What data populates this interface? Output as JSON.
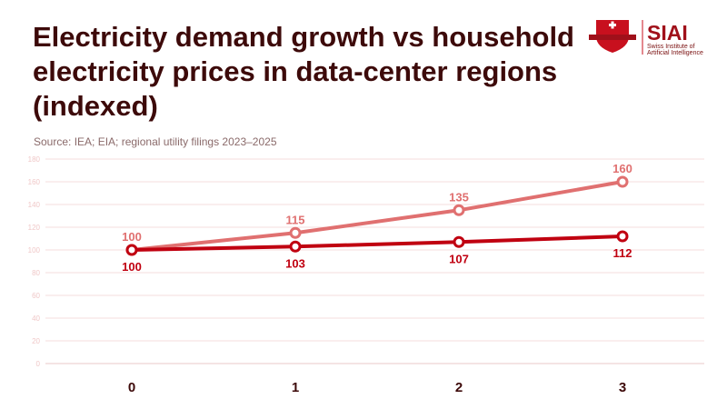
{
  "header": {
    "title": "Electricity demand growth vs household electricity prices in data-center regions (indexed)",
    "source": "Source: IEA; EIA; regional utility filings 2023–2025"
  },
  "logo": {
    "wordmark": "SIAI",
    "line1": "Swiss Institute of",
    "line2": "Artificial Intelligence"
  },
  "chart_data": {
    "type": "line",
    "title": "Electricity demand growth vs household electricity prices in data-center regions (indexed)",
    "x": [
      0,
      1,
      2,
      3
    ],
    "xticks": [
      "0",
      "1",
      "2",
      "3"
    ],
    "ylim": [
      0,
      180
    ],
    "yticks": [
      0,
      20,
      40,
      60,
      80,
      100,
      120,
      140,
      160,
      180
    ],
    "grid": true,
    "series": [
      {
        "values": [
          100,
          115,
          135,
          160
        ],
        "color": "#e07070",
        "label_position": "above"
      },
      {
        "values": [
          100,
          103,
          107,
          112
        ],
        "color": "#c00010",
        "label_position": "below"
      }
    ]
  }
}
